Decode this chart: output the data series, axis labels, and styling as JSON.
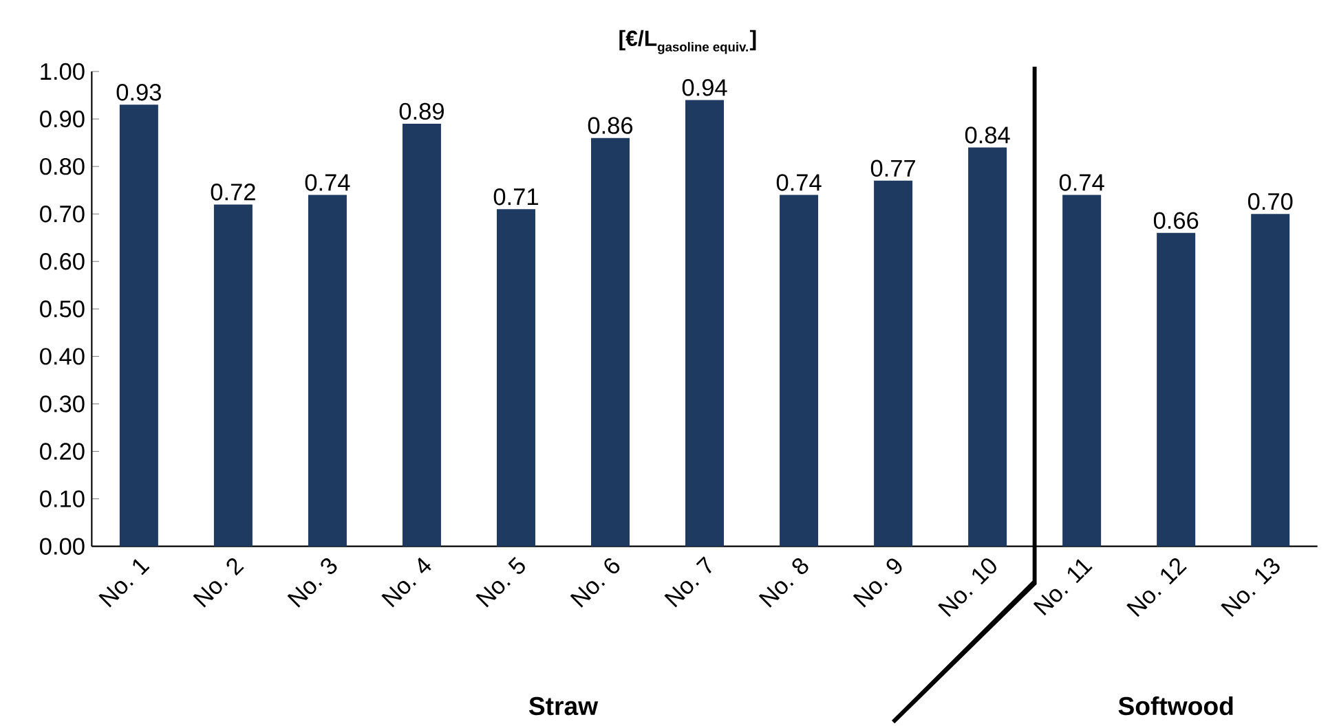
{
  "chart_data": {
    "type": "bar",
    "ylabel": "\\mbox{[€/L}_{\\mbox{\\scriptsize gasoline equiv.}}\\mbox{]}",
    "categories": [
      "No. 1",
      "No. 2",
      "No. 3",
      "No. 4",
      "No. 5",
      "No. 6",
      "No. 7",
      "No. 8",
      "No. 9",
      "No. 10",
      "No. 11",
      "No. 12",
      "No. 13"
    ],
    "values": [
      0.93,
      0.72,
      0.74,
      0.89,
      0.71,
      0.86,
      0.94,
      0.74,
      0.77,
      0.84,
      0.74,
      0.66,
      0.7
    ],
    "value_labels": [
      "0.93",
      "0.72",
      "0.74",
      "0.89",
      "0.71",
      "0.86",
      "0.94",
      "0.74",
      "0.77",
      "0.84",
      "0.74",
      "0.66",
      "0.70"
    ],
    "color": "#1f3a60",
    "ylim": [
      0,
      1.0
    ],
    "yticks": [
      {
        "value": 0,
        "label": "0.00"
      },
      {
        "value": 0.1,
        "label": "0.10"
      },
      {
        "value": 0.2,
        "label": "0.20"
      },
      {
        "value": 0.3,
        "label": "0.30"
      },
      {
        "value": 0.4,
        "label": "0.40"
      },
      {
        "value": 0.5,
        "label": "0.50"
      },
      {
        "value": 0.6,
        "label": "0.60"
      },
      {
        "value": 0.7,
        "label": "0.70"
      },
      {
        "value": 0.8,
        "label": "0.80"
      },
      {
        "value": 0.9,
        "label": "0.90"
      },
      {
        "value": 1.0,
        "label": "1.00"
      }
    ],
    "annotations": [
      "Straw",
      "Softwood"
    ],
    "grid": false
  }
}
